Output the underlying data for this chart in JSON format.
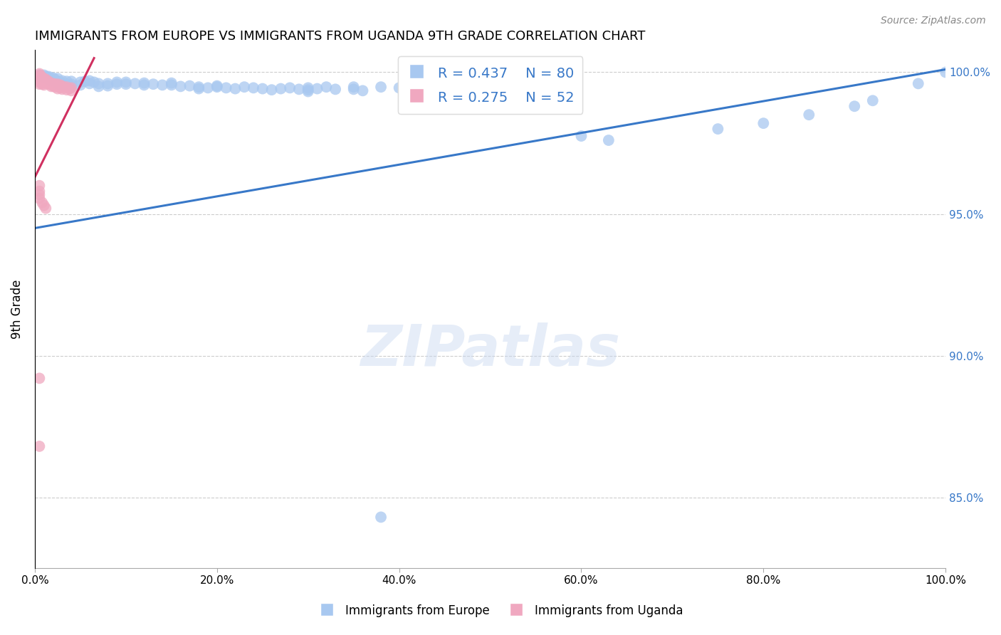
{
  "title": "IMMIGRANTS FROM EUROPE VS IMMIGRANTS FROM UGANDA 9TH GRADE CORRELATION CHART",
  "source": "Source: ZipAtlas.com",
  "ylabel": "9th Grade",
  "xlim": [
    0.0,
    1.0
  ],
  "ylim": [
    0.825,
    1.008
  ],
  "blue_label": "Immigrants from Europe",
  "pink_label": "Immigrants from Uganda",
  "blue_R": 0.437,
  "blue_N": 80,
  "pink_R": 0.275,
  "pink_N": 52,
  "blue_color": "#A8C8F0",
  "pink_color": "#F0A8C0",
  "blue_line_color": "#3878C8",
  "pink_line_color": "#D03060",
  "background_color": "#FFFFFF",
  "grid_color": "#CCCCCC",
  "ytick_labels": [
    "85.0%",
    "90.0%",
    "95.0%",
    "100.0%"
  ],
  "ytick_values": [
    0.85,
    0.9,
    0.95,
    1.0
  ],
  "xtick_labels": [
    "0.0%",
    "20.0%",
    "40.0%",
    "60.0%",
    "80.0%",
    "100.0%"
  ],
  "xtick_values": [
    0.0,
    0.2,
    0.4,
    0.6,
    0.8,
    1.0
  ],
  "blue_line_x0": 0.0,
  "blue_line_y0": 0.945,
  "blue_line_x1": 1.0,
  "blue_line_y1": 1.001,
  "pink_line_x0": 0.0,
  "pink_line_y0": 0.963,
  "pink_line_x1": 0.065,
  "pink_line_y1": 1.005,
  "blue_x": [
    0.005,
    0.008,
    0.01,
    0.012,
    0.015,
    0.015,
    0.018,
    0.018,
    0.02,
    0.02,
    0.022,
    0.025,
    0.025,
    0.025,
    0.03,
    0.03,
    0.03,
    0.035,
    0.035,
    0.04,
    0.04,
    0.04,
    0.05,
    0.05,
    0.055,
    0.06,
    0.06,
    0.065,
    0.07,
    0.07,
    0.08,
    0.08,
    0.09,
    0.09,
    0.1,
    0.1,
    0.11,
    0.12,
    0.12,
    0.13,
    0.14,
    0.15,
    0.15,
    0.16,
    0.17,
    0.18,
    0.18,
    0.19,
    0.2,
    0.2,
    0.21,
    0.22,
    0.23,
    0.24,
    0.25,
    0.26,
    0.27,
    0.28,
    0.29,
    0.3,
    0.3,
    0.3,
    0.31,
    0.32,
    0.33,
    0.35,
    0.35,
    0.36,
    0.38,
    0.4,
    0.6,
    0.63,
    0.75,
    0.8,
    0.85,
    0.9,
    0.92,
    0.97,
    1.0,
    0.38
  ],
  "blue_y": [
    0.999,
    0.9985,
    0.999,
    0.9985,
    0.9985,
    0.9975,
    0.998,
    0.997,
    0.998,
    0.9972,
    0.9975,
    0.9978,
    0.9968,
    0.996,
    0.997,
    0.9962,
    0.9955,
    0.9968,
    0.9958,
    0.9968,
    0.9958,
    0.995,
    0.9965,
    0.9955,
    0.9968,
    0.997,
    0.996,
    0.9965,
    0.996,
    0.995,
    0.996,
    0.9952,
    0.9965,
    0.9958,
    0.9965,
    0.9958,
    0.996,
    0.9962,
    0.9955,
    0.9958,
    0.9955,
    0.9962,
    0.9955,
    0.995,
    0.9952,
    0.9948,
    0.9942,
    0.9945,
    0.9948,
    0.9952,
    0.9945,
    0.9942,
    0.9948,
    0.9945,
    0.9942,
    0.9938,
    0.9942,
    0.9945,
    0.994,
    0.9945,
    0.9938,
    0.9932,
    0.9942,
    0.9948,
    0.994,
    0.9948,
    0.994,
    0.9935,
    0.9948,
    0.9945,
    0.9775,
    0.976,
    0.98,
    0.982,
    0.985,
    0.988,
    0.99,
    0.996,
    1.0,
    0.843
  ],
  "pink_x": [
    0.005,
    0.005,
    0.005,
    0.005,
    0.005,
    0.005,
    0.005,
    0.005,
    0.007,
    0.007,
    0.008,
    0.008,
    0.008,
    0.01,
    0.01,
    0.01,
    0.012,
    0.012,
    0.013,
    0.014,
    0.015,
    0.015,
    0.016,
    0.017,
    0.018,
    0.018,
    0.02,
    0.02,
    0.022,
    0.022,
    0.025,
    0.025,
    0.025,
    0.028,
    0.028,
    0.03,
    0.03,
    0.032,
    0.035,
    0.035,
    0.038,
    0.04,
    0.04,
    0.005,
    0.005,
    0.005,
    0.005,
    0.008,
    0.01,
    0.012,
    0.005,
    0.005
  ],
  "pink_y": [
    0.9995,
    0.999,
    0.9985,
    0.9982,
    0.9978,
    0.9972,
    0.9965,
    0.9958,
    0.9985,
    0.9975,
    0.998,
    0.9968,
    0.9958,
    0.9978,
    0.9965,
    0.9955,
    0.9975,
    0.9962,
    0.997,
    0.9965,
    0.9968,
    0.9958,
    0.9962,
    0.9958,
    0.996,
    0.995,
    0.996,
    0.9952,
    0.9958,
    0.9948,
    0.9958,
    0.995,
    0.9942,
    0.9955,
    0.9945,
    0.995,
    0.994,
    0.9948,
    0.9948,
    0.9938,
    0.9942,
    0.9945,
    0.9935,
    0.96,
    0.958,
    0.9568,
    0.9555,
    0.954,
    0.953,
    0.952,
    0.892,
    0.868
  ]
}
